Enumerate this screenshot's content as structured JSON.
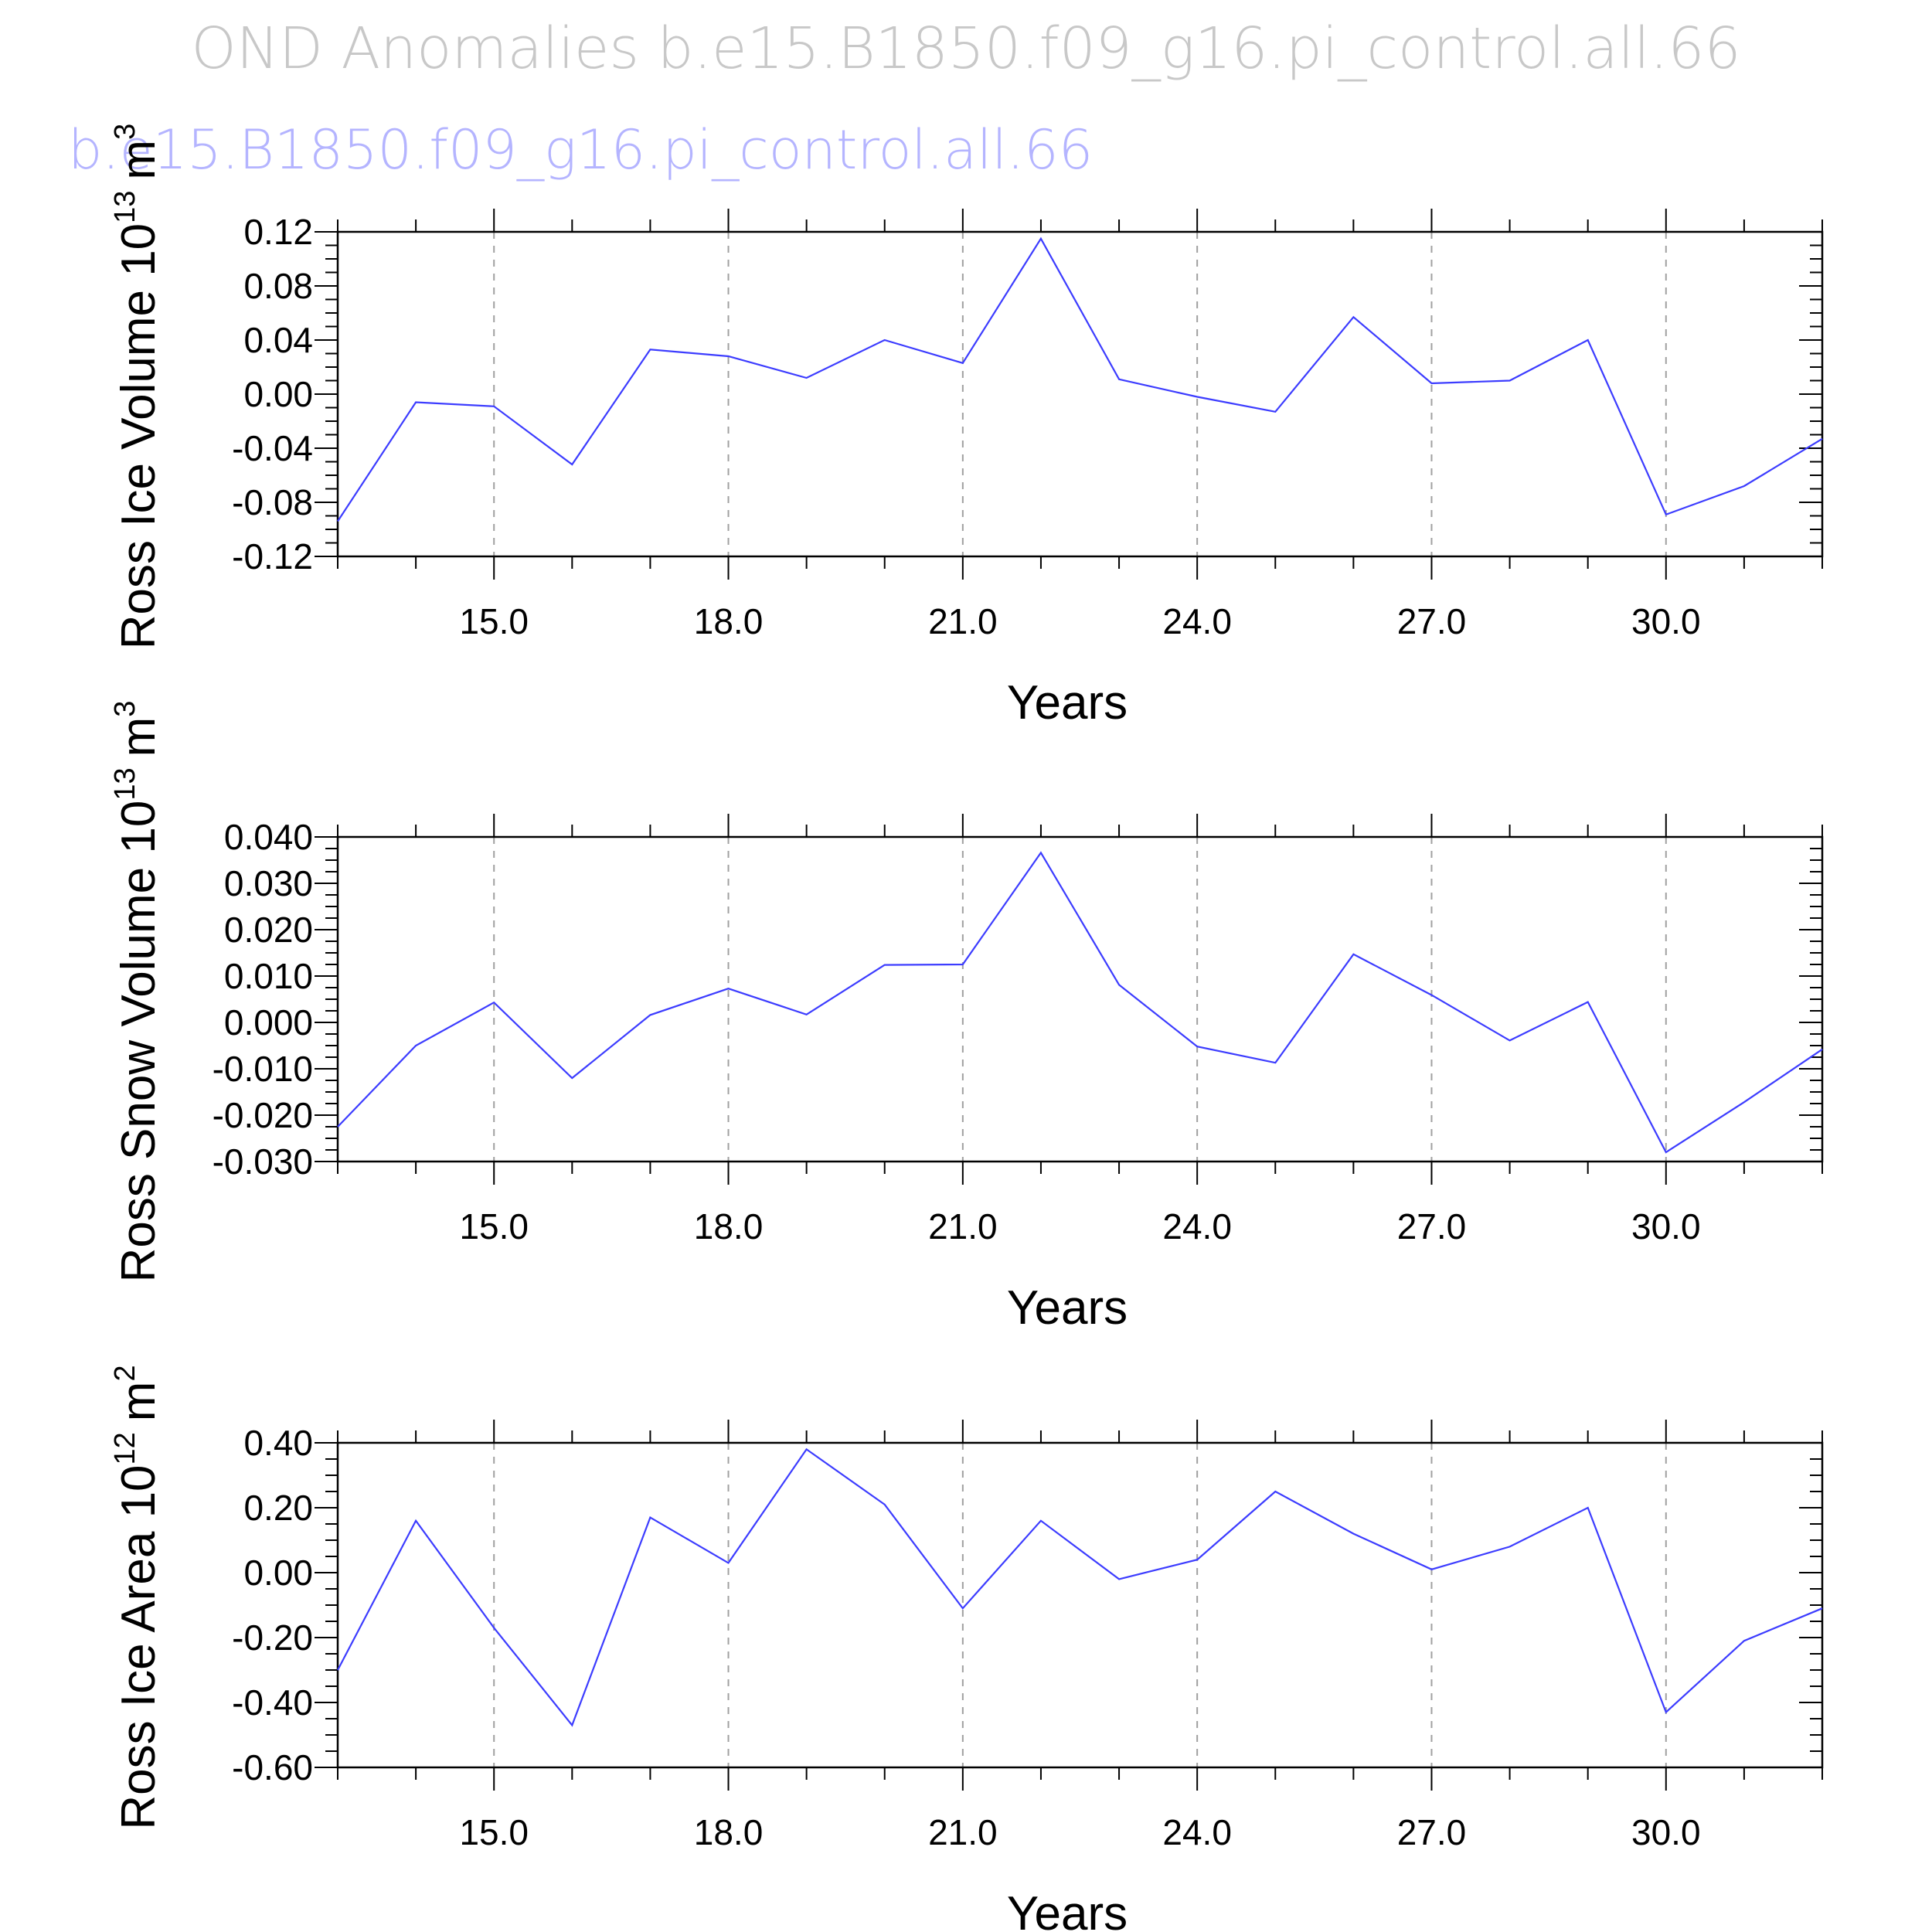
{
  "figure": {
    "title": "OND Anomalies b.e15.B1850.f09_g16.pi_control.all.66",
    "case_label": "b.e15.B1850.f09_g16.pi_control.all.66",
    "title_color": "#c8c8c8",
    "case_label_color": "#b4b4ff",
    "series_color": "#3c3cff"
  },
  "chart_data": [
    {
      "type": "line",
      "ylabel": "Ross Ice Volume 10",
      "ylabel_sup": "13",
      "ylabel_unit": "m",
      "ylabel_unit_sup": "3",
      "xlabel": "Years",
      "xlim": [
        13,
        32
      ],
      "ylim": [
        -0.12,
        0.12
      ],
      "x_ticks": [
        15,
        18,
        21,
        24,
        27,
        30
      ],
      "x_tick_labels": [
        "15.0",
        "18.0",
        "21.0",
        "24.0",
        "27.0",
        "30.0"
      ],
      "y_ticks": [
        -0.12,
        -0.08,
        -0.04,
        0.0,
        0.04,
        0.08,
        0.12
      ],
      "y_tick_labels": [
        "-0.12",
        "-0.08",
        "-0.04",
        "0.00",
        "0.04",
        "0.08",
        "0.12"
      ],
      "grid": "vertical dashed at major x ticks",
      "x": [
        13,
        14,
        15,
        16,
        17,
        18,
        19,
        20,
        21,
        22,
        23,
        24,
        25,
        26,
        27,
        28,
        29,
        30,
        31,
        32
      ],
      "y": [
        -0.094,
        -0.006,
        -0.009,
        -0.052,
        0.033,
        0.028,
        0.012,
        0.04,
        0.023,
        0.115,
        0.011,
        -0.002,
        -0.013,
        0.057,
        0.008,
        0.01,
        0.04,
        -0.089,
        -0.068,
        -0.033
      ]
    },
    {
      "type": "line",
      "ylabel": "Ross Snow Volume 10",
      "ylabel_sup": "13",
      "ylabel_unit": "m",
      "ylabel_unit_sup": "3",
      "xlabel": "Years",
      "xlim": [
        13,
        32
      ],
      "ylim": [
        -0.03,
        0.04
      ],
      "x_ticks": [
        15,
        18,
        21,
        24,
        27,
        30
      ],
      "x_tick_labels": [
        "15.0",
        "18.0",
        "21.0",
        "24.0",
        "27.0",
        "30.0"
      ],
      "y_ticks": [
        -0.03,
        -0.02,
        -0.01,
        0.0,
        0.01,
        0.02,
        0.03,
        0.04
      ],
      "y_tick_labels": [
        "-0.030",
        "-0.020",
        "-0.010",
        "0.000",
        "0.010",
        "0.020",
        "0.030",
        "0.040"
      ],
      "grid": "vertical dashed at major x ticks",
      "x": [
        13,
        14,
        15,
        16,
        17,
        18,
        19,
        20,
        21,
        22,
        23,
        24,
        25,
        26,
        27,
        28,
        29,
        30,
        31,
        32
      ],
      "y": [
        -0.0225,
        -0.005,
        0.0043,
        -0.012,
        0.0016,
        0.0073,
        0.0017,
        0.0124,
        0.0125,
        0.0366,
        0.0081,
        -0.0052,
        -0.0087,
        0.0147,
        0.0059,
        -0.0039,
        0.0044,
        -0.028,
        -0.0172,
        -0.0058
      ]
    },
    {
      "type": "line",
      "ylabel": "Ross Ice Area 10",
      "ylabel_sup": "12",
      "ylabel_unit": "m",
      "ylabel_unit_sup": "2",
      "xlabel": "Years",
      "xlim": [
        13,
        32
      ],
      "ylim": [
        -0.6,
        0.4
      ],
      "x_ticks": [
        15,
        18,
        21,
        24,
        27,
        30
      ],
      "x_tick_labels": [
        "15.0",
        "18.0",
        "21.0",
        "24.0",
        "27.0",
        "30.0"
      ],
      "y_ticks": [
        -0.6,
        -0.4,
        -0.2,
        0.0,
        0.2,
        0.4
      ],
      "y_tick_labels": [
        "-0.60",
        "-0.40",
        "-0.20",
        "0.00",
        "0.20",
        "0.40"
      ],
      "grid": "vertical dashed at major x ticks",
      "x": [
        13,
        14,
        15,
        16,
        17,
        18,
        19,
        20,
        21,
        22,
        23,
        24,
        25,
        26,
        27,
        28,
        29,
        30,
        31,
        32
      ],
      "y": [
        -0.3,
        0.16,
        -0.17,
        -0.47,
        0.17,
        0.03,
        0.38,
        0.21,
        -0.11,
        0.16,
        -0.02,
        0.04,
        0.25,
        0.12,
        0.01,
        0.08,
        0.2,
        -0.43,
        -0.21,
        -0.11
      ]
    }
  ]
}
